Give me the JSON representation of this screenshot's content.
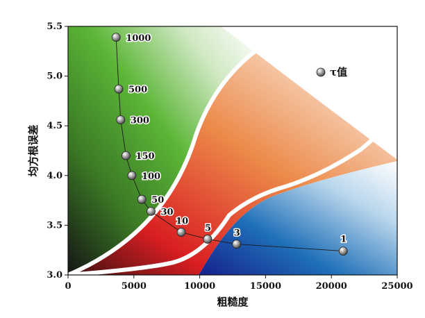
{
  "chart_data": {
    "type": "scatter",
    "xlabel": "粗糙度",
    "ylabel": "均方根误差",
    "xlim": [
      0,
      25000
    ],
    "ylim": [
      3.0,
      5.5
    ],
    "x_ticks": [
      "0",
      "5000",
      "10000",
      "15000",
      "20000",
      "25000"
    ],
    "y_ticks": [
      "3.0",
      "3.5",
      "4.0",
      "4.5",
      "5.0",
      "5.5"
    ],
    "legend": {
      "label": "τ值",
      "position": "top-right"
    },
    "series": [
      {
        "name": "τ值",
        "points": [
          {
            "label": "1000",
            "x": 3650,
            "y": 5.39
          },
          {
            "label": "500",
            "x": 3850,
            "y": 4.87
          },
          {
            "label": "300",
            "x": 4000,
            "y": 4.56
          },
          {
            "label": "150",
            "x": 4400,
            "y": 4.2
          },
          {
            "label": "100",
            "x": 4850,
            "y": 4.0
          },
          {
            "label": "50",
            "x": 5600,
            "y": 3.76
          },
          {
            "label": "30",
            "x": 6300,
            "y": 3.64
          },
          {
            "label": "10",
            "x": 8600,
            "y": 3.43
          },
          {
            "label": "5",
            "x": 10600,
            "y": 3.36
          },
          {
            "label": "3",
            "x": 12800,
            "y": 3.31
          },
          {
            "label": "1",
            "x": 20900,
            "y": 3.24
          }
        ]
      }
    ],
    "colors": {
      "green": "#5cb637",
      "dark": "#151515",
      "orange": "#ec8a4a",
      "red": "#d91e22",
      "blue": "#1e6fb8",
      "navy": "#16208c"
    }
  }
}
